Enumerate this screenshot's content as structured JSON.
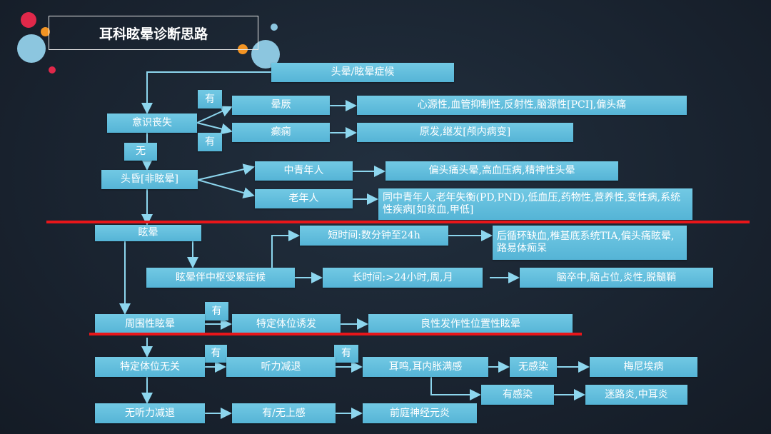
{
  "title": "耳科眩晕诊断思路",
  "nodes": {
    "start": "头晕/眩晕症候",
    "loc": "意识丧失",
    "yes1": "有",
    "yes2": "有",
    "no1": "无",
    "syncope": "晕厥",
    "syncope_causes": "心源性,血管抑制性,反射性,脑源性[PCI],偏头痛",
    "epilepsy": "癫痫",
    "epilepsy_causes": "原发,继发[颅内病变]",
    "lightheaded": "头昏[非眩晕]",
    "young": "中青年人",
    "young_causes": "偏头痛头晕,高血压病,精神性头晕",
    "old": "老年人",
    "old_causes": "同中青年人,老年失衡(PD,PND),低血压,药物性,营养性,变性病,系统性疾病[如贫血,甲低]",
    "vertigo": "眩晕",
    "central": "眩晕伴中枢受累症候",
    "short": "短时间:数分钟至24h",
    "short_causes": "后循环缺血,椎基底系统TIA,偏头痛眩晕,路易体痴呆",
    "long": "长时间:>24小时,周,月",
    "long_causes": "脑卒中,脑占位,炎性,脱髓鞘",
    "peripheral": "周围性眩晕",
    "yes3": "有",
    "positional": "特定体位诱发",
    "bppv": "良性发作性位置性眩晕",
    "nonpositional": "特定体位无关",
    "yes4": "有",
    "yes5": "有",
    "hearing_loss": "听力减退",
    "tinnitus": "耳鸣,耳内胀满感",
    "no_infection": "无感染",
    "meniere": "梅尼埃病",
    "infection": "有感染",
    "labyrinthitis": "迷路炎,中耳炎",
    "no_hearing_loss": "无听力减退",
    "uri": "有/无上感",
    "vestibular_neuritis": "前庭神经元炎"
  },
  "colors": {
    "box": "#5bbcd9",
    "connector": "#8dd6ee",
    "highlight_line": "#e8161a",
    "background": "#18212d"
  }
}
